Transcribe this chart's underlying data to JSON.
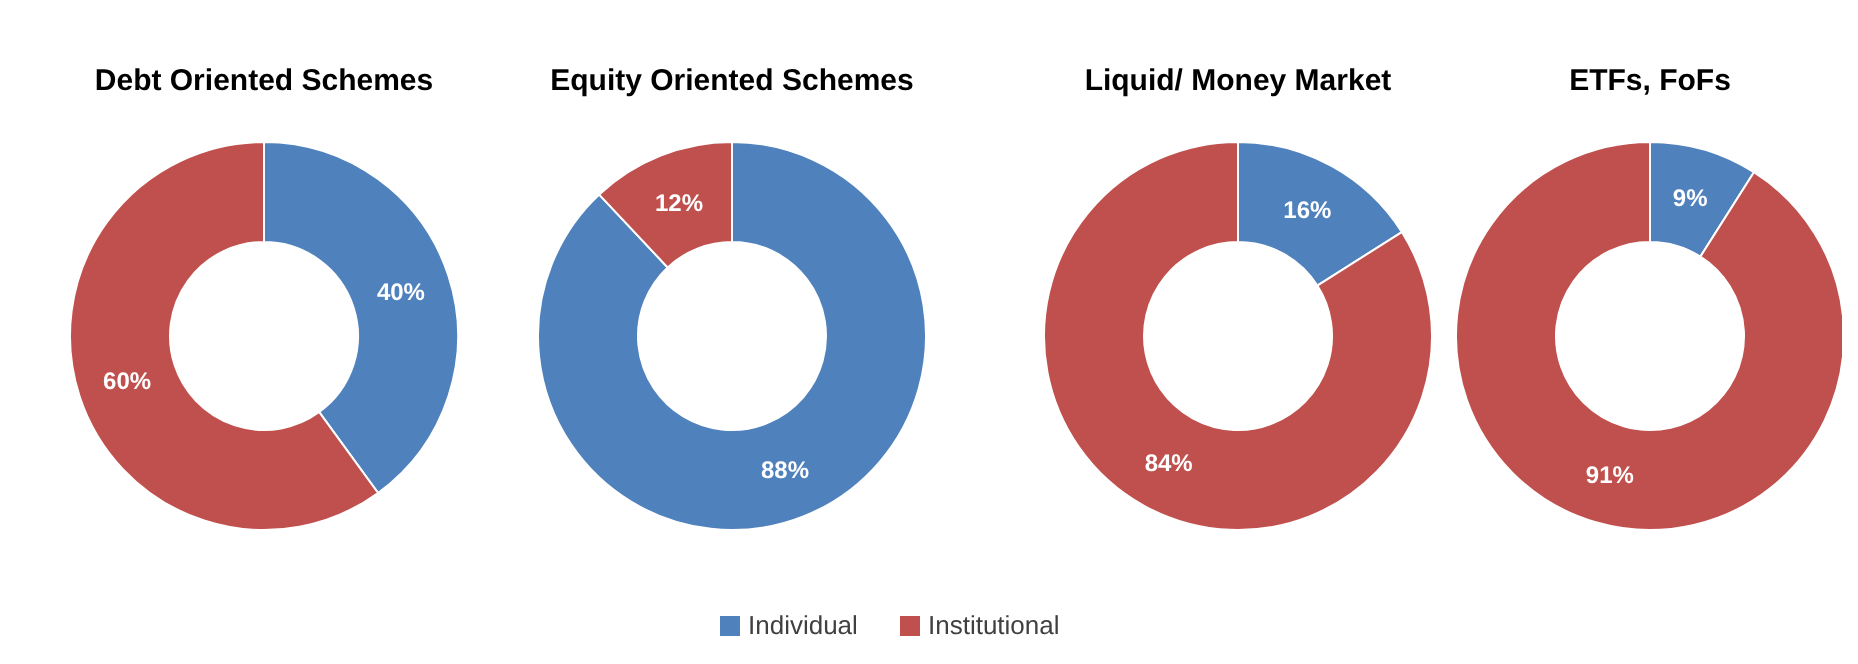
{
  "chart_data": [
    {
      "type": "donut",
      "title": "Debt Oriented Schemes",
      "categories": [
        "Individual",
        "Institutional"
      ],
      "values": [
        40,
        60
      ],
      "colors": [
        "#4f81bd",
        "#c0504d"
      ],
      "value_labels": [
        "40%",
        "60%"
      ],
      "legend": "bottom"
    },
    {
      "type": "donut",
      "title": "Equity Oriented Schemes",
      "categories": [
        null,
        null
      ],
      "values": [
        88,
        12
      ],
      "colors": [
        "#4f81bd",
        "#c0504d"
      ],
      "value_labels": [
        "88%",
        "12%"
      ]
    },
    {
      "type": "donut",
      "title": "Liquid/ Money Market",
      "categories": [
        null,
        null
      ],
      "values": [
        16,
        84
      ],
      "colors": [
        "#4f81bd",
        "#c0504d"
      ],
      "value_labels": [
        "16%",
        "84%"
      ]
    },
    {
      "type": "donut",
      "title": "ETFs, FoFs",
      "categories": [
        null,
        null
      ],
      "values": [
        9,
        91
      ],
      "colors": [
        "#4f81bd",
        "#c0504d"
      ],
      "value_labels": [
        "9%",
        "91%"
      ]
    }
  ]
}
